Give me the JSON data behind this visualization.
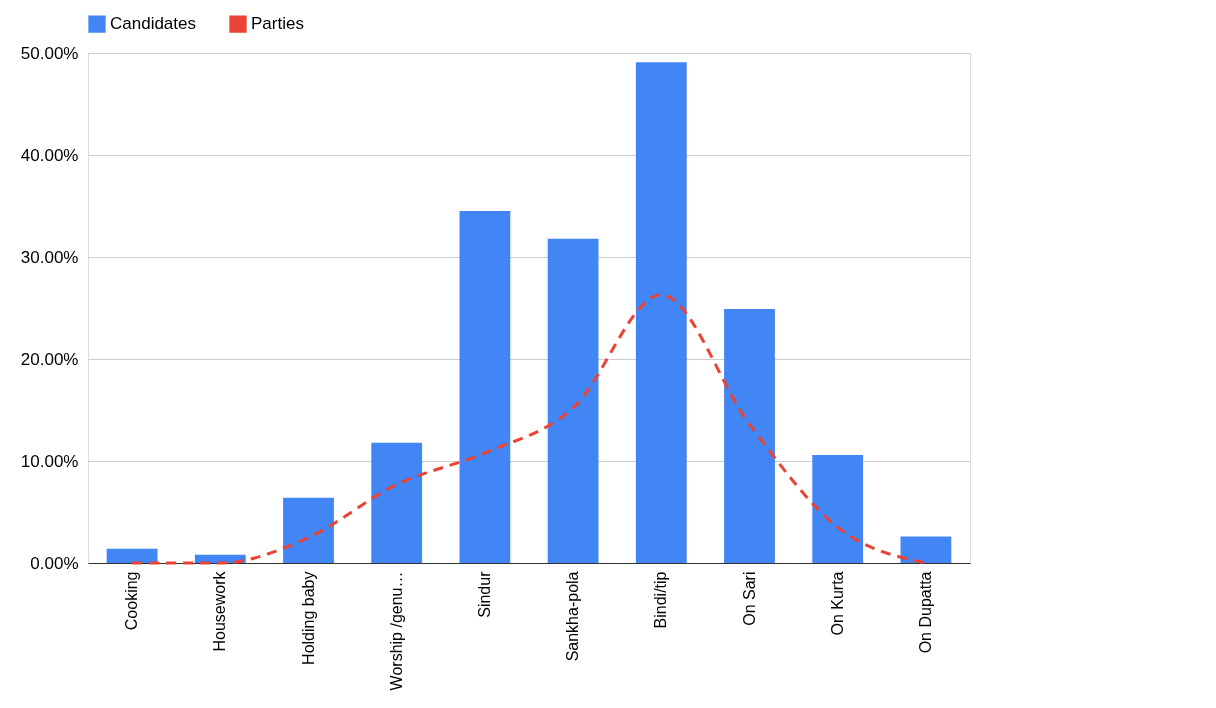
{
  "chart_data": {
    "type": "bar",
    "categories": [
      "Cooking",
      "Housework",
      "Holding baby",
      "Worship /genu…",
      "Sindur",
      "Sankha-pola",
      "Bindi/tip",
      "On Sari",
      "On Kurta",
      "On Dupatta"
    ],
    "series": [
      {
        "name": "Candidates",
        "color": "#4285f4",
        "values": [
          1.4,
          0.8,
          6.4,
          11.8,
          34.5,
          31.8,
          49.1,
          24.9,
          10.6,
          2.6
        ]
      },
      {
        "name": "Parties",
        "type": "line",
        "color": "#ea4335",
        "line_style": "dashed",
        "values": [
          0,
          0,
          2.5,
          7.7,
          10.8,
          15.2,
          26.3,
          13.6,
          3.5,
          0
        ]
      }
    ],
    "ylim": [
      0,
      50
    ],
    "yticks": [
      {
        "value": 0,
        "label": "0.00%"
      },
      {
        "value": 10,
        "label": "10.00%"
      },
      {
        "value": 20,
        "label": "20.00%"
      },
      {
        "value": 30,
        "label": "30.00%"
      },
      {
        "value": 40,
        "label": "40.00%"
      },
      {
        "value": 50,
        "label": "50.00%"
      }
    ],
    "grid": "y",
    "legend": "top",
    "marker": "none"
  }
}
